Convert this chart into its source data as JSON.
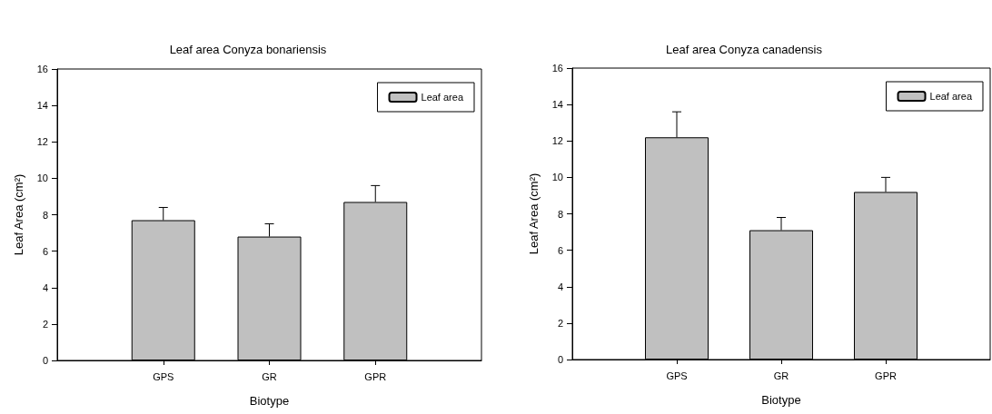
{
  "chart_data": [
    {
      "type": "bar",
      "title": "Leaf area Conyza bonariensis",
      "xlabel": "Biotype",
      "ylabel": "Leaf Area (cm²)",
      "categories": [
        "GPS",
        "GR",
        "GPR"
      ],
      "series": [
        {
          "name": "Leaf area",
          "color": "#c0c0c0",
          "values": [
            7.7,
            6.8,
            8.7
          ],
          "errors": [
            [
              7.7,
              8.4
            ],
            [
              6.8,
              7.5
            ],
            [
              8.7,
              9.6
            ]
          ]
        }
      ],
      "ylim": [
        0,
        16
      ],
      "yticks": [
        0,
        2,
        4,
        6,
        8,
        10,
        12,
        14,
        16
      ],
      "grid": false,
      "legend": "top right"
    },
    {
      "type": "bar",
      "title": "Leaf area Conyza canadensis",
      "xlabel": "Biotype",
      "ylabel": "Leaf Area (cm²)",
      "categories": [
        "GPS",
        "GR",
        "GPR"
      ],
      "series": [
        {
          "name": "Leaf area",
          "color": "#c0c0c0",
          "values": [
            12.2,
            7.1,
            9.2
          ],
          "errors": [
            [
              12.2,
              13.6
            ],
            [
              7.1,
              7.8
            ],
            [
              9.2,
              10.0
            ]
          ]
        }
      ],
      "ylim": [
        0,
        16
      ],
      "yticks": [
        0,
        2,
        4,
        6,
        8,
        10,
        12,
        14,
        16
      ],
      "grid": false,
      "legend": "top right"
    }
  ]
}
